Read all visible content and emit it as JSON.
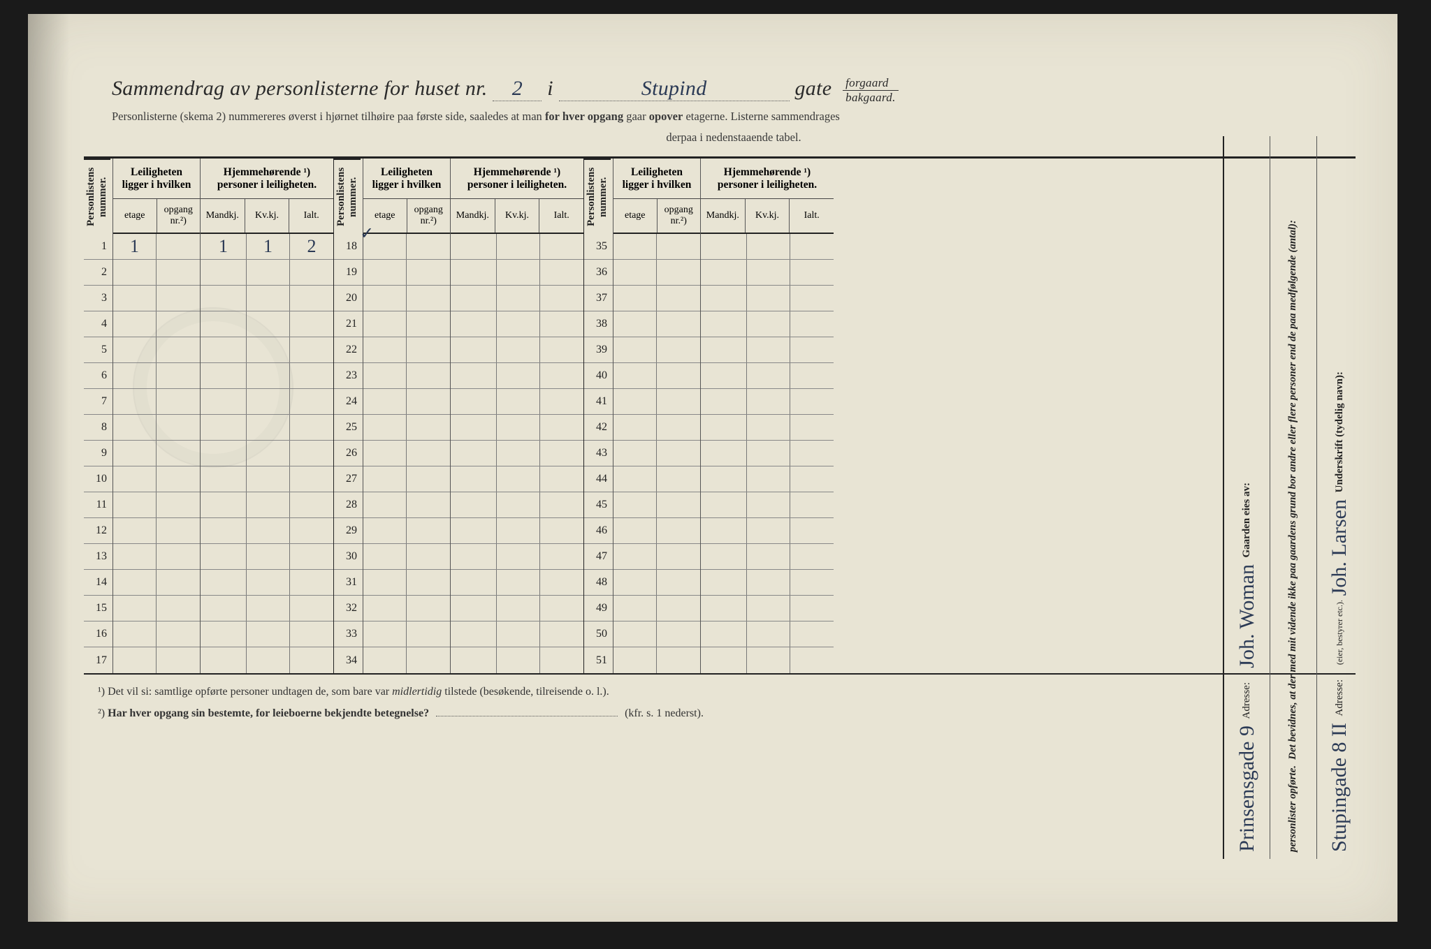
{
  "header": {
    "title_prefix": "Sammendrag av personlisterne for huset nr.",
    "huset_nr": "2",
    "i": "i",
    "gate_name": "Stupind",
    "gate_label": "gate",
    "forgaard": "forgaard",
    "bakgaard": "bakgaard.",
    "sub1": "Personlisterne (skema 2) nummereres øverst i hjørnet tilhøire paa første side, saaledes at man ",
    "sub1b": "for hver opgang",
    "sub1c": " gaar ",
    "sub1d": "opover",
    "sub1e": " etagerne.  Listerne sammendrages",
    "sub2": "derpaa i nedenstaaende tabel."
  },
  "cols": {
    "personlistens": "Personlistens\nnummer.",
    "leil_group": "Leiligheten\nligger i hvilken",
    "etage": "etage",
    "opgang": "opgang\nnr.²)",
    "hjem_group": "Hjemmehørende ¹)\npersoner i leiligheten.",
    "mandkj": "Mandkj.",
    "kvkj": "Kv.kj.",
    "ialt": "Ialt."
  },
  "data_row": {
    "etage": "1",
    "mandkj": "1",
    "kvkj": "1",
    "ialt": "2",
    "tick": "✓"
  },
  "block_starts": [
    1,
    18,
    35
  ],
  "rows_per_block": 17,
  "footnotes": {
    "f1": "¹)  Det vil si: samtlige opførte personer undtagen de, som bare var ",
    "f1i": "midlertidig",
    "f1b": " tilstede (besøkende, tilreisende o. l.).",
    "f2a": "²)  ",
    "f2b": "Har hver opgang sin bestemte, for leieboerne bekjendte betegnelse?",
    "f2c": "(kfr. s. 1 nederst)."
  },
  "side": {
    "gaarden_label": "Gaarden eies av:",
    "gaarden_val": "Joh. Woman",
    "gaarden_adr_label": "Adresse:",
    "gaarden_adr_val": "Prinsensgade 9",
    "bevid_label": "Det bevidnes, at der med mit vidende ikke paa gaardens grund bor andre eller flere personer end de paa medfølgende (antal):",
    "person_label": "personlister opførte.",
    "underskrift_label": "Underskrift (tydelig navn):",
    "underskrift_val": "Joh. Larsen",
    "underskrift_sub": "(eier, bestyrer etc.).",
    "adr2_label": "Adresse:",
    "adr2_val": "Stupingade 8 II"
  },
  "colors": {
    "paper": "#e8e4d4",
    "ink": "#222222",
    "handwriting": "#2b3a55",
    "rule": "#555555"
  }
}
